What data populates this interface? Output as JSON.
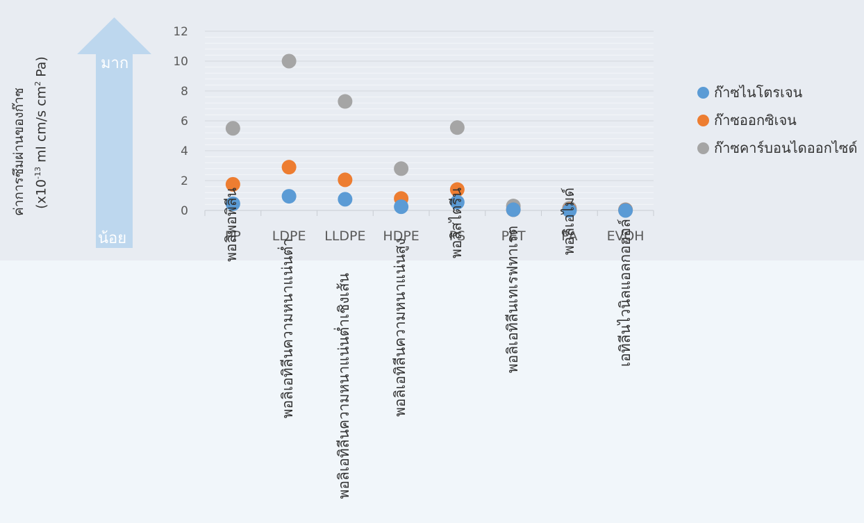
{
  "y_axis": {
    "label_line1": "ค่าการซึมผ่านของก๊าซ",
    "label_line2_prefix": "(x10",
    "label_line2_exp": "-13",
    "label_line2_mid": " ml cm/s cm",
    "label_line2_exp2": "2",
    "label_line2_suffix": " Pa)"
  },
  "arrow": {
    "top_word": "มาก",
    "bottom_word": "น้อย",
    "color": "#bdd7ee"
  },
  "chart_data": {
    "type": "scatter",
    "categories": [
      "PP",
      "LDPE",
      "LLDPE",
      "HDPE",
      "PS",
      "PET",
      "PA",
      "EVOH"
    ],
    "y_ticks": [
      "0",
      "2",
      "4",
      "6",
      "8",
      "10",
      "12"
    ],
    "ylim": [
      0,
      12
    ],
    "grid": true,
    "legend_position": "right",
    "series": [
      {
        "name": "ก๊าซไนโตรเจน",
        "color": "#5b9bd5",
        "values": [
          0.45,
          0.95,
          0.75,
          0.25,
          0.55,
          0.05,
          0.0,
          0.0
        ]
      },
      {
        "name": "ก๊าซออกซิเจน",
        "color": "#ed7d31",
        "values": [
          1.75,
          2.9,
          2.05,
          0.8,
          1.4,
          0.05,
          0.05,
          0.02
        ]
      },
      {
        "name": "ก๊าซคาร์บอนไดออกไซด์",
        "color": "#a5a5a5",
        "values": [
          5.5,
          10.0,
          7.3,
          2.8,
          5.55,
          0.3,
          0.15,
          0.05
        ]
      }
    ]
  },
  "thai_labels": [
    "พอลิพอพิลีน",
    "พอลิเอทิลีนความหนาแน่นต่ำ",
    "พอลิเอทิลีนความหนาแน่นต่ำเชิงเส้น",
    "พอลิเอทิลีนความหนาแน่นสูง",
    "พอลิสไตรีน",
    "พอลิเอทิลีนเทเรฟทาเรต",
    "พอลิเอไมด์",
    "เอทิลีนไวนิลแอลกอฮอล์"
  ]
}
